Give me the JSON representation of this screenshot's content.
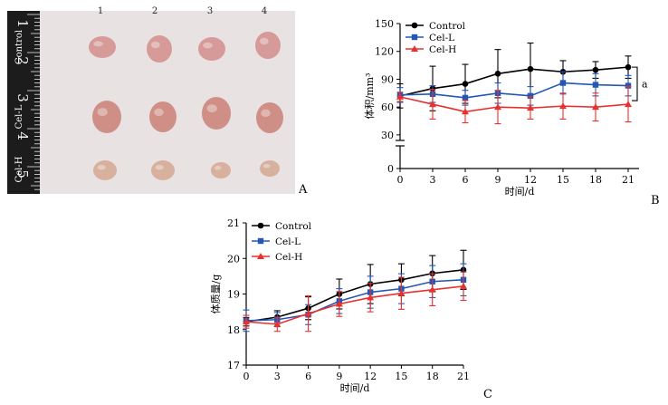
{
  "panels": {
    "a": {
      "letter": "A",
      "columns": [
        "1",
        "2",
        "3",
        "4"
      ],
      "rows": [
        "Control",
        "Cel-L",
        "Cel-H"
      ],
      "ruler_numbers": [
        "1",
        "2",
        "3",
        "4",
        "5"
      ],
      "tumor_colors": {
        "control": "#d69b98",
        "cel_l": "#cf8f87",
        "cel_h": "#d8b19e"
      }
    },
    "b": {
      "letter": "B"
    },
    "c": {
      "letter": "C"
    }
  },
  "chart_data": [
    {
      "id": "B",
      "type": "line",
      "xlabel": "时间/d",
      "ylabel": "体积/mm³",
      "x": [
        0,
        3,
        6,
        9,
        12,
        15,
        18,
        21
      ],
      "xticks": [
        "0",
        "3",
        "6",
        "9",
        "12",
        "15",
        "18",
        "21"
      ],
      "xlim": [
        0,
        22
      ],
      "ylim": [
        0,
        150
      ],
      "axis_break": [
        10,
        24
      ],
      "yticks": [
        0,
        30,
        60,
        90,
        120,
        150
      ],
      "legend": "top-left",
      "annotation": "a",
      "series": [
        {
          "name": "Control",
          "color": "#000000",
          "marker": "circle",
          "values": [
            72,
            80,
            85,
            96,
            101,
            98,
            100,
            103
          ],
          "errors": [
            13,
            24,
            21,
            26,
            28,
            12,
            9,
            12
          ]
        },
        {
          "name": "Cel-L",
          "color": "#2457b5",
          "marker": "square",
          "values": [
            73,
            74,
            70,
            75,
            72,
            86,
            84,
            83
          ],
          "errors": [
            8,
            9,
            8,
            11,
            10,
            12,
            12,
            11
          ]
        },
        {
          "name": "Cel-H",
          "color": "#e8312e",
          "marker": "triangle",
          "values": [
            71,
            63,
            55,
            60,
            59,
            61,
            60,
            63
          ],
          "errors": [
            5,
            16,
            12,
            18,
            12,
            14,
            15,
            19
          ]
        }
      ]
    },
    {
      "id": "C",
      "type": "line",
      "xlabel": "时间/d",
      "ylabel": "体质量/g",
      "x": [
        0,
        3,
        6,
        9,
        12,
        15,
        18,
        21
      ],
      "xticks": [
        "0",
        "3",
        "6",
        "9",
        "12",
        "15",
        "18",
        "21"
      ],
      "xlim": [
        0,
        21
      ],
      "ylim": [
        17,
        21
      ],
      "yticks": [
        17,
        18,
        19,
        20,
        21
      ],
      "legend": "top-left",
      "series": [
        {
          "name": "Control",
          "color": "#000000",
          "marker": "circle",
          "values": [
            18.22,
            18.35,
            18.6,
            19.0,
            19.28,
            19.4,
            19.58,
            19.68
          ],
          "errors": [
            0.12,
            0.18,
            0.32,
            0.42,
            0.55,
            0.45,
            0.5,
            0.55
          ]
        },
        {
          "name": "Cel-L",
          "color": "#2457b5",
          "marker": "square",
          "values": [
            18.25,
            18.28,
            18.42,
            18.8,
            19.05,
            19.15,
            19.35,
            19.4
          ],
          "errors": [
            0.3,
            0.2,
            0.28,
            0.35,
            0.45,
            0.42,
            0.45,
            0.45
          ]
        },
        {
          "name": "Cel-H",
          "color": "#e8312e",
          "marker": "triangle",
          "values": [
            18.22,
            18.15,
            18.45,
            18.72,
            18.9,
            19.02,
            19.12,
            19.22
          ],
          "errors": [
            0.18,
            0.2,
            0.5,
            0.35,
            0.4,
            0.45,
            0.45,
            0.4
          ]
        }
      ]
    }
  ]
}
